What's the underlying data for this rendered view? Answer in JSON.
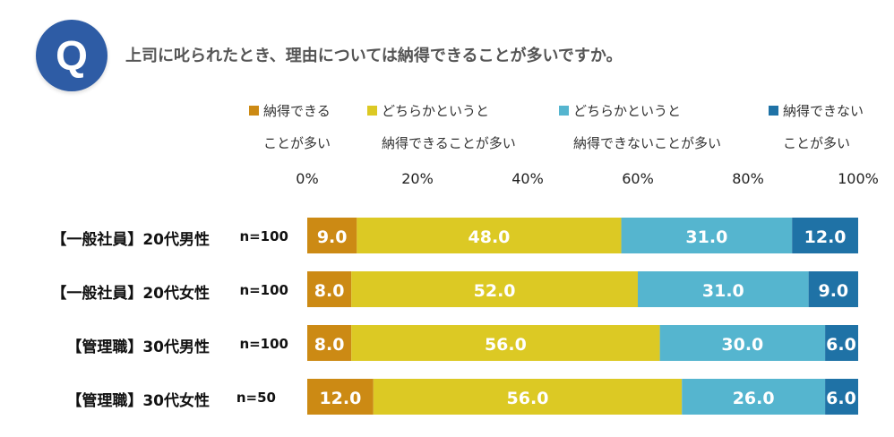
{
  "badge": "Q",
  "question": "上司に叱られたとき、理由については納得できることが多いですか。",
  "colors": {
    "agree": "#cc8a14",
    "somewhat_agree": "#dcc924",
    "somewhat_disagree": "#55b5cf",
    "disagree": "#1f72a6",
    "badge": "#2e5ca5"
  },
  "chart_data": {
    "type": "bar",
    "orientation": "horizontal",
    "stacked": true,
    "title": "上司に叱られたとき、理由については納得できることが多いですか。",
    "xlim": [
      0,
      100
    ],
    "ticks": [
      "0%",
      "20%",
      "40%",
      "60%",
      "80%",
      "100%"
    ],
    "tick_values": [
      0,
      20,
      40,
      60,
      80,
      100
    ],
    "categories": [
      "【一般社員】20代男性",
      "【一般社員】20代女性",
      "【管理職】30代男性",
      "【管理職】30代女性"
    ],
    "sample_sizes": [
      "n=100",
      "n=100",
      "n=100",
      "n=50"
    ],
    "series": [
      {
        "name": "納得できることが多い",
        "line1": "納得できる",
        "line2": "ことが多い",
        "values": [
          9.0,
          8.0,
          8.0,
          12.0
        ]
      },
      {
        "name": "どちらかというと納得できることが多い",
        "line1": "どちらかというと",
        "line2": "納得できることが多い",
        "values": [
          48.0,
          52.0,
          56.0,
          56.0
        ]
      },
      {
        "name": "どちらかというと納得できないことが多い",
        "line1": "どちらかというと",
        "line2": "納得できないことが多い",
        "values": [
          31.0,
          31.0,
          30.0,
          26.0
        ]
      },
      {
        "name": "納得できないことが多い",
        "line1": "納得できない",
        "line2": "ことが多い",
        "values": [
          12.0,
          9.0,
          6.0,
          6.0
        ]
      }
    ]
  }
}
